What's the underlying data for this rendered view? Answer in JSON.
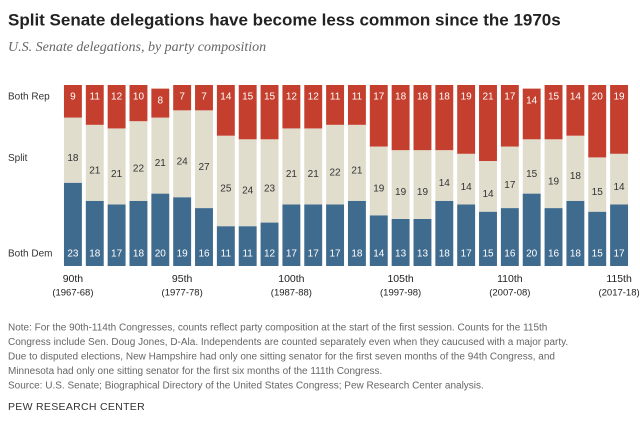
{
  "chart_data": {
    "type": "stacked_bar",
    "title": "Split Senate delegations have become less common since the 1970s",
    "subtitle": "U.S. Senate delegations, by party composition",
    "categories": [
      "90th",
      null,
      null,
      null,
      null,
      "95th",
      null,
      null,
      null,
      null,
      "100th",
      null,
      null,
      null,
      null,
      "105th",
      null,
      null,
      null,
      null,
      "110th",
      null,
      null,
      null,
      null,
      "115th"
    ],
    "category_sublabels": [
      "(1967-68)",
      null,
      null,
      null,
      null,
      "(1977-78)",
      null,
      null,
      null,
      null,
      "(1987-88)",
      null,
      null,
      null,
      null,
      "(1997-98)",
      null,
      null,
      null,
      null,
      "(2007-08)",
      null,
      null,
      null,
      null,
      "(2017-18)"
    ],
    "series": [
      {
        "name": "Both Dem",
        "color": "#3f6b8f",
        "label_color": "#ffffff",
        "values": [
          23,
          18,
          17,
          18,
          20,
          19,
          16,
          11,
          11,
          12,
          17,
          17,
          17,
          18,
          14,
          13,
          13,
          18,
          17,
          15,
          16,
          20,
          16,
          18,
          15,
          17
        ]
      },
      {
        "name": "Split",
        "color": "#e1ddcd",
        "label_color": "#333333",
        "values": [
          18,
          21,
          21,
          22,
          21,
          24,
          27,
          25,
          24,
          23,
          21,
          21,
          22,
          21,
          19,
          19,
          19,
          14,
          14,
          14,
          17,
          15,
          19,
          18,
          15,
          14
        ]
      },
      {
        "name": "Both Rep",
        "color": "#c53f2e",
        "label_color": "#ffffff",
        "values": [
          9,
          11,
          12,
          10,
          8,
          7,
          7,
          14,
          15,
          15,
          12,
          12,
          11,
          11,
          17,
          18,
          18,
          18,
          19,
          21,
          17,
          14,
          15,
          14,
          20,
          19
        ]
      }
    ],
    "notes": [
      "Note: For the 90th-114th Congresses, counts reflect party composition at the start of the first session. Counts for the 115th",
      "Congress include Sen. Doug Jones, D-Ala. Independents are counted separately even when they caucused with a major party.",
      "Due to disputed elections, New Hampshire had only one sitting senator for the first seven months of the 94th Congress, and",
      "Minnesota had only one sitting senator for the first six months of the 111th Congress.",
      "Source: U.S. Senate; Biographical Directory of the United States Congress; Pew Research Center analysis."
    ],
    "footer": "PEW RESEARCH CENTER"
  }
}
